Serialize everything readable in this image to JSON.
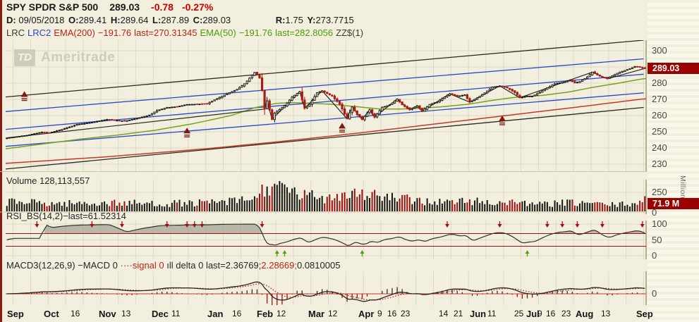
{
  "header": {
    "symbol_title": "SPY SPDR S&P 500",
    "last_price": "289.03",
    "change": "-0.78",
    "change_pct": "-0.27%",
    "ohlc": {
      "d_label": "D:",
      "date": "09/05/2018",
      "o_label": "O:",
      "open": "289.41",
      "h_label": "H:",
      "high": "289.64",
      "l_label": "L:",
      "low": "287.89",
      "c_label": "C:",
      "close": "289.03",
      "r_label": "R:",
      "range": "1.75",
      "y_label": "Y:",
      "y_value": "273.7715"
    },
    "studies": {
      "lrc": "LRC",
      "lrc2": "LRC2",
      "ema200": "EMA(200)",
      "ema200_params": "−191.76",
      "ema200_last": "last=270.31345",
      "ema50": "EMA(50)",
      "ema50_params": "−191.76",
      "ema50_last": "last=282.8056",
      "zz": "ZZ$(1)"
    }
  },
  "watermark": {
    "td": "TD",
    "name": "Ameritrade"
  },
  "panels": {
    "volume": {
      "label": "Volume 128,113,557",
      "last_label": "71.9 M",
      "unit_label": "Millions"
    },
    "rsi": {
      "name": "RSI_BS(14,2)",
      "dash": "−",
      "last": "last=61.52314"
    },
    "macd": {
      "name": "MACD3(12,26,9)",
      "macd_leg": "−MACD 0",
      "signal_leg": "····signal 0",
      "delta_leg": "ıll delta 0",
      "last_black": "last=2.36769;",
      "last_red": "2.28669;",
      "last_tail": "0.0810005"
    }
  },
  "chart_data": {
    "type": "candlestick",
    "title": "SPY SPDR S&P 500 daily, Sep 2017 - Sep 2018, with LRC channels, EMA(50), EMA(200), ZZ$(1), Volume, RSI_BS(14,2), MACD3(12,26,9)",
    "days": 256,
    "grid": true,
    "price_axis": {
      "range": [
        226,
        307
      ],
      "ticks_labeled": [
        300,
        280,
        270,
        260,
        250,
        240,
        230
      ],
      "grid_ticks": [
        300,
        290,
        280,
        270,
        260,
        250,
        240,
        230
      ],
      "last": 289.03,
      "last_label": "289.03"
    },
    "close_anchors": [
      [
        0,
        246.2
      ],
      [
        8,
        247.8
      ],
      [
        14,
        249.8
      ],
      [
        17,
        249.4
      ],
      [
        22,
        251.4
      ],
      [
        28,
        254.5
      ],
      [
        34,
        255.8
      ],
      [
        40,
        257.6
      ],
      [
        45,
        256.9
      ],
      [
        47,
        256.6
      ],
      [
        52,
        258.2
      ],
      [
        57,
        260.3
      ],
      [
        60,
        263.1
      ],
      [
        64,
        264.9
      ],
      [
        68,
        265.5
      ],
      [
        72,
        266.8
      ],
      [
        76,
        267.0
      ],
      [
        80,
        267.3
      ],
      [
        84,
        270.5
      ],
      [
        88,
        273.4
      ],
      [
        92,
        276.2
      ],
      [
        95,
        279.6
      ],
      [
        99,
        286.6
      ],
      [
        101,
        283.2
      ],
      [
        102,
        275.4
      ],
      [
        103,
        264.0
      ],
      [
        104,
        269.1
      ],
      [
        106,
        257.6
      ],
      [
        107,
        261.5
      ],
      [
        111,
        266.0
      ],
      [
        114,
        271.4
      ],
      [
        117,
        274.7
      ],
      [
        119,
        264.5
      ],
      [
        121,
        267.0
      ],
      [
        124,
        274.1
      ],
      [
        126,
        275.3
      ],
      [
        130,
        272.0
      ],
      [
        133,
        267.0
      ],
      [
        136,
        258.0
      ],
      [
        138,
        265.3
      ],
      [
        140,
        260.6
      ],
      [
        142,
        257.5
      ],
      [
        145,
        263.6
      ],
      [
        147,
        259.0
      ],
      [
        150,
        265.1
      ],
      [
        153,
        266.6
      ],
      [
        156,
        270.2
      ],
      [
        158,
        266.6
      ],
      [
        161,
        263.6
      ],
      [
        164,
        266.0
      ],
      [
        166,
        262.6
      ],
      [
        169,
        266.9
      ],
      [
        172,
        268.4
      ],
      [
        175,
        271.5
      ],
      [
        177,
        273.4
      ],
      [
        180,
        271.8
      ],
      [
        183,
        272.8
      ],
      [
        185,
        268.3
      ],
      [
        188,
        270.9
      ],
      [
        191,
        274.0
      ],
      [
        194,
        277.5
      ],
      [
        197,
        278.3
      ],
      [
        200,
        277.0
      ],
      [
        203,
        274.2
      ],
      [
        205,
        271.0
      ],
      [
        208,
        272.0
      ],
      [
        210,
        271.9
      ],
      [
        213,
        274.4
      ],
      [
        216,
        277.1
      ],
      [
        219,
        279.6
      ],
      [
        222,
        280.5
      ],
      [
        225,
        281.8
      ],
      [
        227,
        280.1
      ],
      [
        229,
        281.0
      ],
      [
        232,
        283.8
      ],
      [
        234,
        286.8
      ],
      [
        236,
        285.1
      ],
      [
        238,
        283.6
      ],
      [
        240,
        282.7
      ],
      [
        243,
        285.5
      ],
      [
        246,
        287.3
      ],
      [
        249,
        288.9
      ],
      [
        251,
        290.3
      ],
      [
        253,
        289.8
      ],
      [
        255,
        289.03
      ]
    ],
    "channel_lines": [
      {
        "color": "#2b2b20",
        "pts": [
          [
            0,
            271.5
          ],
          [
            255,
            306.5
          ]
        ]
      },
      {
        "color": "#2a49c8",
        "pts": [
          [
            0,
            262.5
          ],
          [
            255,
            295.0
          ]
        ]
      },
      {
        "color": "#2a49c8",
        "pts": [
          [
            0,
            251.5
          ],
          [
            255,
            285.5
          ]
        ]
      },
      {
        "color": "#2a49c8",
        "pts": [
          [
            0,
            241.0
          ],
          [
            255,
            274.0
          ]
        ]
      },
      {
        "color": "#2b2b20",
        "pts": [
          [
            0,
            227.0
          ],
          [
            255,
            265.0
          ]
        ]
      }
    ],
    "ema200": {
      "color": "#c23a2c",
      "last": 270.31345,
      "pts": [
        [
          0,
          230.5
        ],
        [
          40,
          234.5
        ],
        [
          80,
          239.5
        ],
        [
          110,
          244
        ],
        [
          140,
          249
        ],
        [
          170,
          254.5
        ],
        [
          200,
          260
        ],
        [
          230,
          265.5
        ],
        [
          255,
          270.31
        ]
      ]
    },
    "ema50": {
      "color": "#7aa11e",
      "last": 282.8056,
      "pts": [
        [
          0,
          239.5
        ],
        [
          15,
          242.5
        ],
        [
          30,
          245.5
        ],
        [
          45,
          248
        ],
        [
          60,
          251
        ],
        [
          75,
          255
        ],
        [
          90,
          260
        ],
        [
          100,
          265
        ],
        [
          108,
          267.5
        ],
        [
          115,
          268
        ],
        [
          122,
          267.5
        ],
        [
          130,
          267
        ],
        [
          140,
          265.5
        ],
        [
          150,
          264
        ],
        [
          158,
          264
        ],
        [
          166,
          264.5
        ],
        [
          175,
          265.5
        ],
        [
          185,
          267
        ],
        [
          195,
          269.5
        ],
        [
          205,
          271.5
        ],
        [
          215,
          272.5
        ],
        [
          225,
          274.5
        ],
        [
          235,
          277.5
        ],
        [
          245,
          280
        ],
        [
          255,
          282.81
        ]
      ]
    },
    "zigzag": {
      "color": "#2b2b20",
      "threshold": 2.3
    },
    "buy_arrows": [
      [
        7,
        271.5
      ],
      [
        72,
        249.0
      ],
      [
        134,
        252.0
      ],
      [
        198,
        256.5
      ]
    ],
    "volume": {
      "axis_ticks": [
        [
          "250",
          273
        ],
        [
          "0",
          302
        ]
      ],
      "last": 71.9,
      "profile": [
        [
          0,
          14
        ],
        [
          20,
          11
        ],
        [
          40,
          12
        ],
        [
          60,
          11
        ],
        [
          80,
          12
        ],
        [
          90,
          14
        ],
        [
          98,
          17
        ],
        [
          103,
          30
        ],
        [
          106,
          40
        ],
        [
          109,
          34
        ],
        [
          114,
          26
        ],
        [
          120,
          22
        ],
        [
          126,
          20
        ],
        [
          133,
          24
        ],
        [
          136,
          27
        ],
        [
          142,
          26
        ],
        [
          148,
          22
        ],
        [
          155,
          18
        ],
        [
          162,
          16
        ],
        [
          170,
          14
        ],
        [
          177,
          13
        ],
        [
          185,
          15
        ],
        [
          192,
          13
        ],
        [
          200,
          12
        ],
        [
          205,
          15
        ],
        [
          210,
          9
        ],
        [
          217,
          11
        ],
        [
          225,
          12
        ],
        [
          233,
          12
        ],
        [
          241,
          9
        ],
        [
          247,
          10
        ],
        [
          251,
          12
        ],
        [
          255,
          15
        ]
      ]
    },
    "rsi": {
      "range": [
        0,
        100
      ],
      "bands": [
        70,
        30
      ],
      "axis_ticks": [
        [
          "100",
          318
        ],
        [
          "50",
          340.5
        ],
        [
          "0",
          363
        ]
      ],
      "last": 61.52314,
      "sell_days": [
        12,
        34,
        46,
        64,
        72,
        75,
        78,
        102,
        176,
        197,
        216,
        222,
        228,
        238,
        254
      ],
      "buy_days": [
        108,
        111,
        142,
        208
      ]
    },
    "macd": {
      "params": [
        12,
        26,
        9
      ],
      "axis_ticks": [
        [
          "0",
          417
        ]
      ],
      "last": [
        2.36769,
        2.28669,
        0.0810005
      ]
    },
    "x_axis": {
      "labels": [
        [
          "Sep",
          10,
          1
        ],
        [
          "Oct",
          62,
          1
        ],
        [
          "16",
          100,
          0
        ],
        [
          "Nov",
          140,
          1
        ],
        [
          "13",
          172,
          0
        ],
        [
          "Dec",
          215,
          1
        ],
        [
          "11",
          243,
          0
        ],
        [
          "Jan",
          294,
          1
        ],
        [
          "16",
          329,
          0
        ],
        [
          "Feb",
          364,
          1
        ],
        [
          "12",
          392,
          0
        ],
        [
          "Mar",
          437,
          1
        ],
        [
          "12",
          465,
          0
        ],
        [
          "Apr",
          508,
          1
        ],
        [
          "9",
          535,
          0
        ],
        [
          "16",
          549,
          0
        ],
        [
          "23",
          568,
          0
        ],
        [
          "14",
          622,
          0
        ],
        [
          "21",
          643,
          0
        ],
        [
          "Jun",
          666,
          1
        ],
        [
          "11",
          691,
          0
        ],
        [
          "25",
          729,
          0
        ],
        [
          "Jul",
          746,
          1
        ],
        [
          "9",
          762,
          0
        ],
        [
          "16",
          774,
          0
        ],
        [
          "23",
          796,
          0
        ],
        [
          "Aug",
          816,
          1
        ],
        [
          "13",
          852,
          0
        ],
        [
          "Sep",
          902,
          1
        ]
      ]
    }
  }
}
